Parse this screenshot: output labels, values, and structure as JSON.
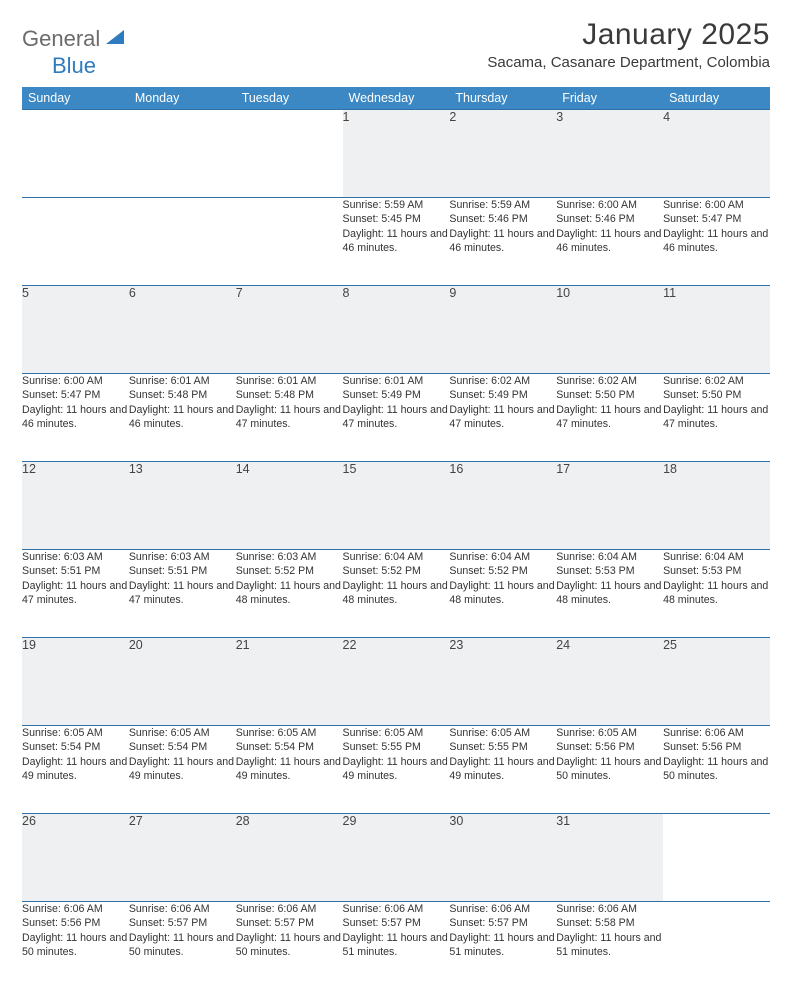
{
  "logo": {
    "text1": "General",
    "text2": "Blue"
  },
  "title": "January 2025",
  "location": "Sacama, Casanare Department, Colombia",
  "header_bg": "#3b88c4",
  "header_fg": "#ffffff",
  "rule_color": "#2f6fa8",
  "daynum_bg": "#eef0f2",
  "dayHeaders": [
    "Sunday",
    "Monday",
    "Tuesday",
    "Wednesday",
    "Thursday",
    "Friday",
    "Saturday"
  ],
  "weeks": [
    [
      null,
      null,
      null,
      {
        "n": "1",
        "sr": "5:59 AM",
        "ss": "5:45 PM",
        "dl": "11 hours and 46 minutes."
      },
      {
        "n": "2",
        "sr": "5:59 AM",
        "ss": "5:46 PM",
        "dl": "11 hours and 46 minutes."
      },
      {
        "n": "3",
        "sr": "6:00 AM",
        "ss": "5:46 PM",
        "dl": "11 hours and 46 minutes."
      },
      {
        "n": "4",
        "sr": "6:00 AM",
        "ss": "5:47 PM",
        "dl": "11 hours and 46 minutes."
      }
    ],
    [
      {
        "n": "5",
        "sr": "6:00 AM",
        "ss": "5:47 PM",
        "dl": "11 hours and 46 minutes."
      },
      {
        "n": "6",
        "sr": "6:01 AM",
        "ss": "5:48 PM",
        "dl": "11 hours and 46 minutes."
      },
      {
        "n": "7",
        "sr": "6:01 AM",
        "ss": "5:48 PM",
        "dl": "11 hours and 47 minutes."
      },
      {
        "n": "8",
        "sr": "6:01 AM",
        "ss": "5:49 PM",
        "dl": "11 hours and 47 minutes."
      },
      {
        "n": "9",
        "sr": "6:02 AM",
        "ss": "5:49 PM",
        "dl": "11 hours and 47 minutes."
      },
      {
        "n": "10",
        "sr": "6:02 AM",
        "ss": "5:50 PM",
        "dl": "11 hours and 47 minutes."
      },
      {
        "n": "11",
        "sr": "6:02 AM",
        "ss": "5:50 PM",
        "dl": "11 hours and 47 minutes."
      }
    ],
    [
      {
        "n": "12",
        "sr": "6:03 AM",
        "ss": "5:51 PM",
        "dl": "11 hours and 47 minutes."
      },
      {
        "n": "13",
        "sr": "6:03 AM",
        "ss": "5:51 PM",
        "dl": "11 hours and 47 minutes."
      },
      {
        "n": "14",
        "sr": "6:03 AM",
        "ss": "5:52 PM",
        "dl": "11 hours and 48 minutes."
      },
      {
        "n": "15",
        "sr": "6:04 AM",
        "ss": "5:52 PM",
        "dl": "11 hours and 48 minutes."
      },
      {
        "n": "16",
        "sr": "6:04 AM",
        "ss": "5:52 PM",
        "dl": "11 hours and 48 minutes."
      },
      {
        "n": "17",
        "sr": "6:04 AM",
        "ss": "5:53 PM",
        "dl": "11 hours and 48 minutes."
      },
      {
        "n": "18",
        "sr": "6:04 AM",
        "ss": "5:53 PM",
        "dl": "11 hours and 48 minutes."
      }
    ],
    [
      {
        "n": "19",
        "sr": "6:05 AM",
        "ss": "5:54 PM",
        "dl": "11 hours and 49 minutes."
      },
      {
        "n": "20",
        "sr": "6:05 AM",
        "ss": "5:54 PM",
        "dl": "11 hours and 49 minutes."
      },
      {
        "n": "21",
        "sr": "6:05 AM",
        "ss": "5:54 PM",
        "dl": "11 hours and 49 minutes."
      },
      {
        "n": "22",
        "sr": "6:05 AM",
        "ss": "5:55 PM",
        "dl": "11 hours and 49 minutes."
      },
      {
        "n": "23",
        "sr": "6:05 AM",
        "ss": "5:55 PM",
        "dl": "11 hours and 49 minutes."
      },
      {
        "n": "24",
        "sr": "6:05 AM",
        "ss": "5:56 PM",
        "dl": "11 hours and 50 minutes."
      },
      {
        "n": "25",
        "sr": "6:06 AM",
        "ss": "5:56 PM",
        "dl": "11 hours and 50 minutes."
      }
    ],
    [
      {
        "n": "26",
        "sr": "6:06 AM",
        "ss": "5:56 PM",
        "dl": "11 hours and 50 minutes."
      },
      {
        "n": "27",
        "sr": "6:06 AM",
        "ss": "5:57 PM",
        "dl": "11 hours and 50 minutes."
      },
      {
        "n": "28",
        "sr": "6:06 AM",
        "ss": "5:57 PM",
        "dl": "11 hours and 50 minutes."
      },
      {
        "n": "29",
        "sr": "6:06 AM",
        "ss": "5:57 PM",
        "dl": "11 hours and 51 minutes."
      },
      {
        "n": "30",
        "sr": "6:06 AM",
        "ss": "5:57 PM",
        "dl": "11 hours and 51 minutes."
      },
      {
        "n": "31",
        "sr": "6:06 AM",
        "ss": "5:58 PM",
        "dl": "11 hours and 51 minutes."
      },
      null
    ]
  ],
  "labels": {
    "sunrise": "Sunrise:",
    "sunset": "Sunset:",
    "daylight": "Daylight:"
  }
}
